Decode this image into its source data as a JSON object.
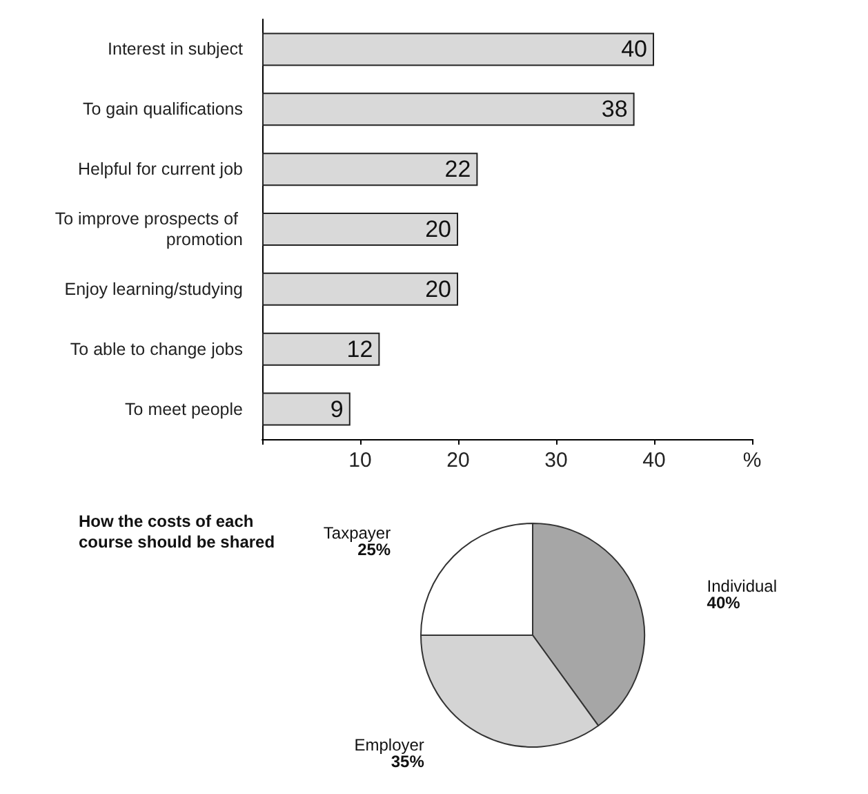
{
  "chart_data": [
    {
      "type": "bar",
      "orientation": "horizontal",
      "categories": [
        "Interest in subject",
        "To gain qualifications",
        "Helpful for current job",
        "To improve prospects of promotion",
        "Enjoy learning/studying",
        "To able to change jobs",
        "To meet people"
      ],
      "values": [
        40,
        38,
        22,
        20,
        20,
        12,
        9
      ],
      "color": "#d9d9d9",
      "data_labels": true,
      "xlim": [
        0,
        50
      ],
      "xticks": [
        {
          "value": 0,
          "label": null
        },
        10,
        20,
        30,
        40,
        {
          "value": 50,
          "label": "%"
        }
      ],
      "grid": false,
      "legend": false
    },
    {
      "type": "pie",
      "title": "How the costs of each course should be shared",
      "categories": [
        "Individual",
        "Employer",
        "Taxpayer"
      ],
      "values": [
        40,
        35,
        25
      ],
      "value_labels": [
        "40%",
        "35%",
        "25%"
      ],
      "colors": [
        "#a6a6a6",
        "#d4d4d4",
        "#ffffff"
      ],
      "legend": false
    }
  ]
}
